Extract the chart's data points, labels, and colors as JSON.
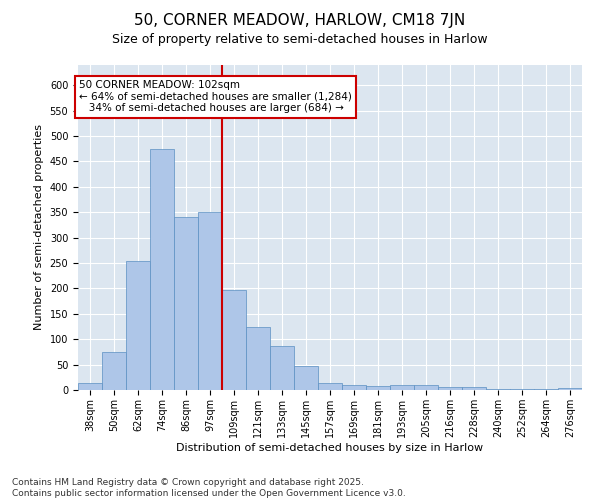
{
  "title": "50, CORNER MEADOW, HARLOW, CM18 7JN",
  "subtitle": "Size of property relative to semi-detached houses in Harlow",
  "xlabel": "Distribution of semi-detached houses by size in Harlow",
  "ylabel": "Number of semi-detached properties",
  "categories": [
    "38sqm",
    "50sqm",
    "62sqm",
    "74sqm",
    "86sqm",
    "97sqm",
    "109sqm",
    "121sqm",
    "133sqm",
    "145sqm",
    "157sqm",
    "169sqm",
    "181sqm",
    "193sqm",
    "205sqm",
    "216sqm",
    "228sqm",
    "240sqm",
    "252sqm",
    "264sqm",
    "276sqm"
  ],
  "values": [
    13,
    75,
    255,
    475,
    340,
    350,
    197,
    125,
    87,
    47,
    14,
    9,
    7,
    9,
    9,
    5,
    5,
    2,
    2,
    2,
    3
  ],
  "bar_color": "#aec6e8",
  "bar_edge_color": "#5a8fc2",
  "vline_color": "#cc0000",
  "annotation_line1": "50 CORNER MEADOW: 102sqm",
  "annotation_line2": "← 64% of semi-detached houses are smaller (1,284)",
  "annotation_line3": "   34% of semi-detached houses are larger (684) →",
  "annotation_box_color": "#cc0000",
  "ylim": [
    0,
    640
  ],
  "yticks": [
    0,
    50,
    100,
    150,
    200,
    250,
    300,
    350,
    400,
    450,
    500,
    550,
    600
  ],
  "background_color": "#dce6f0",
  "footer": "Contains HM Land Registry data © Crown copyright and database right 2025.\nContains public sector information licensed under the Open Government Licence v3.0.",
  "title_fontsize": 11,
  "subtitle_fontsize": 9,
  "xlabel_fontsize": 8,
  "ylabel_fontsize": 8,
  "tick_fontsize": 7,
  "footer_fontsize": 6.5,
  "annotation_fontsize": 7.5
}
